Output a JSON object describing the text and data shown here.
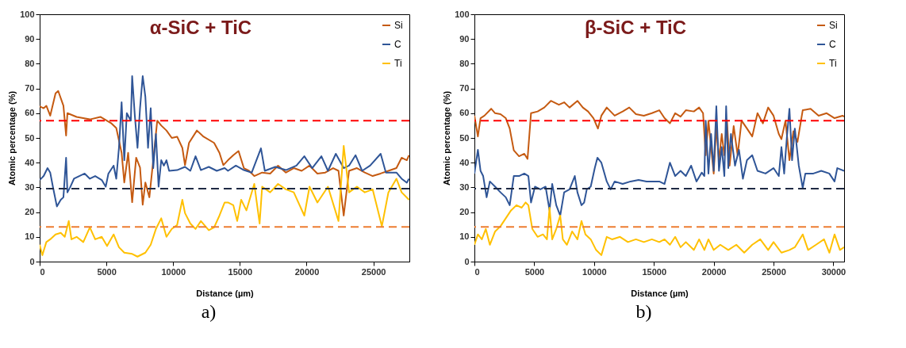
{
  "chart_data": [
    {
      "type": "line",
      "title": "α-SiC + TiC",
      "xlabel": "Distance (µm)",
      "ylabel": "Atomic percentage (%)",
      "xlim": [
        0,
        27700
      ],
      "ylim": [
        0,
        100
      ],
      "xticks": [
        0,
        5000,
        10000,
        15000,
        20000,
        25000
      ],
      "yticks": [
        0,
        10,
        20,
        30,
        40,
        50,
        60,
        70,
        80,
        90,
        100
      ],
      "grid": false,
      "legend": "top right",
      "line_style": "solid",
      "marker": "none",
      "annotations": [
        "a)"
      ],
      "ref_lines": [
        {
          "axis": "y",
          "value": 57,
          "color": "#ff0000",
          "line_style": "dashed"
        },
        {
          "axis": "y",
          "value": 29.5,
          "color": "#1f2a44",
          "line_style": "dashed"
        },
        {
          "axis": "y",
          "value": 14,
          "color": "#ed7d31",
          "line_style": "dashed"
        }
      ],
      "series": [
        {
          "name": "Si",
          "color": "#c55a11",
          "x": [
            0,
            300,
            500,
            790,
            1190,
            1390,
            1780,
            1980,
            2080,
            2770,
            3760,
            4550,
            5350,
            5740,
            6140,
            6340,
            6630,
            6930,
            7230,
            7520,
            7720,
            7920,
            8220,
            8510,
            8810,
            9110,
            9500,
            9900,
            10300,
            10690,
            10890,
            11190,
            11780,
            12280,
            13070,
            13470,
            13760,
            14110,
            14510,
            14900,
            15300,
            15690,
            16080,
            16670,
            17270,
            17860,
            18450,
            19040,
            19630,
            20220,
            20810,
            21400,
            21990,
            22390,
            22780,
            23180,
            23770,
            24360,
            24950,
            25540,
            26130,
            26730,
            27120,
            27510,
            27670
          ],
          "values": [
            62.8,
            62,
            63,
            59,
            68,
            69,
            63,
            51,
            60,
            58.5,
            57.5,
            58.5,
            56,
            54,
            44,
            32,
            44,
            24,
            42,
            38,
            23,
            32,
            26,
            41,
            57,
            55,
            53,
            50,
            50.5,
            46,
            39,
            48,
            53,
            50.5,
            48,
            44,
            39,
            41,
            43,
            44.7,
            37.8,
            36.7,
            34.6,
            36,
            35.6,
            38.8,
            36,
            37.8,
            36.7,
            38.8,
            35.6,
            36,
            37.8,
            36.7,
            18.6,
            36.7,
            37.8,
            36,
            34.6,
            35.6,
            36.7,
            37.8,
            42,
            41,
            43
          ]
        },
        {
          "name": "C",
          "color": "#2f5597",
          "x": [
            0,
            300,
            590,
            790,
            990,
            1290,
            1580,
            1780,
            1980,
            2080,
            2280,
            2570,
            2970,
            3370,
            3760,
            4160,
            4650,
            4950,
            5150,
            5540,
            5740,
            5940,
            6140,
            6340,
            6530,
            6830,
            6930,
            7130,
            7330,
            7520,
            7720,
            7920,
            8120,
            8320,
            8510,
            8710,
            8910,
            9110,
            9310,
            9500,
            9700,
            10300,
            10890,
            11290,
            11680,
            12080,
            12670,
            13270,
            13860,
            14110,
            14700,
            15300,
            15890,
            16580,
            16870,
            17660,
            18450,
            19240,
            19830,
            20420,
            21110,
            21600,
            22190,
            22780,
            23180,
            23670,
            24160,
            24760,
            25550,
            25940,
            26730,
            27120,
            27510,
            27670
          ],
          "values": [
            33,
            34.6,
            37.8,
            36,
            30.3,
            22.3,
            25,
            26,
            42,
            28,
            30,
            33.5,
            34.6,
            35.6,
            33.5,
            34.6,
            33,
            30.3,
            35.6,
            38.8,
            33.5,
            46,
            64.4,
            41,
            60,
            57,
            75,
            59,
            46,
            62,
            75,
            66.6,
            46,
            62,
            37.8,
            51.6,
            30.3,
            41,
            38.8,
            41,
            36.7,
            37,
            38.3,
            36.7,
            42.6,
            37,
            38.3,
            36.7,
            37.8,
            36.7,
            38.8,
            37,
            36,
            45.8,
            36.7,
            38.3,
            37,
            38.8,
            42.6,
            37.8,
            42.6,
            36.7,
            43.6,
            37.8,
            38.8,
            43,
            36.7,
            38.8,
            43.6,
            36,
            36,
            33.5,
            31.9,
            33.5
          ]
        },
        {
          "name": "Ti",
          "color": "#ffc000",
          "x": [
            0,
            200,
            500,
            790,
            1190,
            1580,
            1880,
            2180,
            2380,
            2770,
            3270,
            3760,
            4160,
            4650,
            5050,
            5540,
            5940,
            6340,
            6930,
            7330,
            7920,
            8320,
            8710,
            9110,
            9500,
            9900,
            10300,
            10690,
            10890,
            11290,
            11680,
            12080,
            12670,
            13070,
            13470,
            13860,
            14110,
            14510,
            14800,
            15100,
            15490,
            16080,
            16480,
            16670,
            17270,
            17860,
            18450,
            19040,
            19830,
            20220,
            20810,
            21600,
            22390,
            22780,
            23180,
            23770,
            24360,
            24950,
            25640,
            26130,
            26730,
            27120,
            27670
          ],
          "values": [
            6.8,
            2.6,
            7.9,
            9,
            11,
            11.6,
            10,
            16.4,
            9,
            10,
            7.9,
            13.8,
            9,
            10,
            6.3,
            11,
            5.8,
            3.6,
            3.1,
            2,
            3.6,
            6.8,
            13.2,
            17.5,
            10,
            13.2,
            14.8,
            25,
            19.6,
            15.4,
            13.2,
            16.4,
            12.7,
            13.8,
            18.6,
            23.9,
            23.9,
            22.8,
            16.4,
            25,
            20.7,
            31.4,
            15.4,
            30.3,
            28,
            31.4,
            29.2,
            28,
            18.6,
            30.3,
            23.9,
            30.3,
            16.4,
            46.8,
            28,
            30.3,
            28,
            29.2,
            14.3,
            28,
            33.5,
            28,
            25
          ]
        }
      ]
    },
    {
      "type": "line",
      "title": "β-SiC + TiC",
      "xlabel": "Distance (µm)",
      "ylabel": "Atomic percentage (%)",
      "xlim": [
        0,
        30900
      ],
      "ylim": [
        0,
        100
      ],
      "xticks": [
        0,
        5000,
        10000,
        15000,
        20000,
        25000,
        30000
      ],
      "yticks": [
        0,
        10,
        20,
        30,
        40,
        50,
        60,
        70,
        80,
        90,
        100
      ],
      "grid": false,
      "legend": "top right",
      "line_style": "solid",
      "marker": "none",
      "annotations": [
        "b)"
      ],
      "ref_lines": [
        {
          "axis": "y",
          "value": 57,
          "color": "#ff0000",
          "line_style": "dashed"
        },
        {
          "axis": "y",
          "value": 29.5,
          "color": "#1f2a44",
          "line_style": "dashed"
        },
        {
          "axis": "y",
          "value": 14,
          "color": "#ed7d31",
          "line_style": "dashed"
        }
      ],
      "series": [
        {
          "name": "Si",
          "color": "#c55a11",
          "x": [
            0,
            290,
            510,
            840,
            1400,
            1730,
            2180,
            2620,
            2950,
            3290,
            3730,
            4170,
            4440,
            4730,
            5280,
            5840,
            6390,
            7060,
            7500,
            7950,
            8610,
            9060,
            9500,
            9950,
            10320,
            10610,
            11060,
            11720,
            12390,
            12940,
            13500,
            14160,
            14830,
            15450,
            15890,
            16340,
            16780,
            17230,
            17670,
            18340,
            18780,
            19110,
            19330,
            19560,
            19780,
            20000,
            20220,
            20440,
            20670,
            20890,
            21110,
            21330,
            21670,
            22000,
            22330,
            22780,
            23220,
            23660,
            24110,
            24550,
            25000,
            25440,
            25660,
            26000,
            26330,
            26660,
            27000,
            27440,
            28100,
            28770,
            29440,
            30100,
            30770,
            30900
          ],
          "values": [
            59,
            50.6,
            58,
            59,
            61.8,
            60,
            59.6,
            58,
            53.8,
            45,
            42.6,
            43.6,
            41.5,
            60,
            60.7,
            62.3,
            65,
            63.4,
            64.4,
            62.3,
            65,
            62.3,
            60.7,
            58,
            53.8,
            59,
            62.3,
            59,
            60.7,
            62.3,
            59.6,
            59,
            60,
            61.2,
            58,
            55.9,
            60,
            58.6,
            61.2,
            60.7,
            62.3,
            60,
            43,
            57,
            46.3,
            35.6,
            54.8,
            41,
            51.6,
            43,
            57,
            38.8,
            54.8,
            43,
            57,
            53.8,
            50.6,
            60,
            55.9,
            62.3,
            59,
            51.6,
            49.5,
            57,
            41,
            52.7,
            48.4,
            61.2,
            61.8,
            59,
            60,
            58,
            59,
            58.6
          ]
        },
        {
          "name": "C",
          "color": "#2f5597",
          "x": [
            0,
            290,
            510,
            730,
            1020,
            1290,
            1730,
            2180,
            2620,
            2950,
            3290,
            3730,
            4170,
            4510,
            4730,
            5060,
            5510,
            5950,
            6280,
            6500,
            6840,
            7170,
            7500,
            7950,
            8390,
            8610,
            8950,
            9170,
            9390,
            9720,
            10060,
            10280,
            10610,
            11060,
            11390,
            11720,
            12390,
            13050,
            13720,
            14390,
            15050,
            15450,
            15890,
            16340,
            16780,
            17230,
            17670,
            18110,
            18560,
            19000,
            19220,
            19330,
            19560,
            19780,
            20000,
            20220,
            20440,
            20670,
            20890,
            21040,
            21220,
            21440,
            21780,
            22110,
            22440,
            22780,
            23220,
            23660,
            24330,
            25000,
            25440,
            25660,
            25890,
            26110,
            26330,
            26550,
            26780,
            27110,
            27440,
            27660,
            28330,
            28990,
            29660,
            30100,
            30330,
            30900
          ],
          "values": [
            35.6,
            45.2,
            36.7,
            34.6,
            26,
            32.4,
            30.3,
            28,
            26,
            22.8,
            34.6,
            34.6,
            35.6,
            34.6,
            23.9,
            30.3,
            29.2,
            30.3,
            20.7,
            31.4,
            22.8,
            18.6,
            28,
            29.2,
            34.6,
            28,
            22.8,
            23.9,
            29.2,
            30.3,
            37.8,
            42,
            40,
            32.4,
            29.2,
            32.4,
            31.4,
            32.4,
            33,
            32.4,
            32.4,
            32.4,
            31.4,
            40,
            34.6,
            36.7,
            34.6,
            38.8,
            32.4,
            36,
            34.6,
            57,
            35.6,
            51.6,
            36.7,
            62.8,
            36.7,
            46.3,
            34.6,
            62.8,
            37.8,
            51.6,
            38.8,
            45.2,
            33.5,
            41,
            43,
            36.7,
            35.6,
            37.8,
            34.6,
            46.3,
            35.6,
            50,
            61.8,
            41,
            53.8,
            38.8,
            29.8,
            35.6,
            35.6,
            36.7,
            35.6,
            32.4,
            37.8,
            36.7
          ]
        },
        {
          "name": "Ti",
          "color": "#ffc000",
          "x": [
            0,
            290,
            620,
            950,
            1290,
            1730,
            2180,
            2620,
            3060,
            3510,
            3950,
            4280,
            4510,
            4840,
            5280,
            5730,
            6060,
            6280,
            6500,
            6840,
            7170,
            7390,
            7730,
            8170,
            8610,
            8950,
            9280,
            9720,
            10170,
            10610,
            11060,
            11500,
            12170,
            12830,
            13500,
            14160,
            14830,
            15450,
            15890,
            16340,
            16780,
            17230,
            17670,
            18340,
            18780,
            19220,
            19560,
            20000,
            20550,
            21220,
            21890,
            22550,
            23220,
            23890,
            24550,
            25000,
            25660,
            26330,
            26780,
            27440,
            27890,
            28550,
            29220,
            29670,
            30100,
            30550,
            30900
          ],
          "values": [
            6.8,
            11,
            9,
            13.2,
            6.8,
            12.2,
            14.3,
            17.5,
            20.7,
            22.8,
            21.8,
            23.9,
            22.8,
            13.2,
            10,
            11,
            9,
            21.8,
            9,
            13.2,
            18.6,
            9,
            6.8,
            12.2,
            9,
            16.4,
            11,
            9,
            4.7,
            2.6,
            10,
            9,
            10,
            7.9,
            9,
            7.9,
            9,
            7.9,
            9,
            6.8,
            10,
            5.8,
            7.9,
            4.7,
            9,
            4.7,
            9,
            4.7,
            6.8,
            4.7,
            6.8,
            3.6,
            6.8,
            9,
            4.7,
            7.9,
            3.6,
            4.7,
            5.8,
            11,
            4.7,
            6.8,
            9,
            3.6,
            11,
            4.7,
            5.8
          ]
        }
      ]
    }
  ]
}
